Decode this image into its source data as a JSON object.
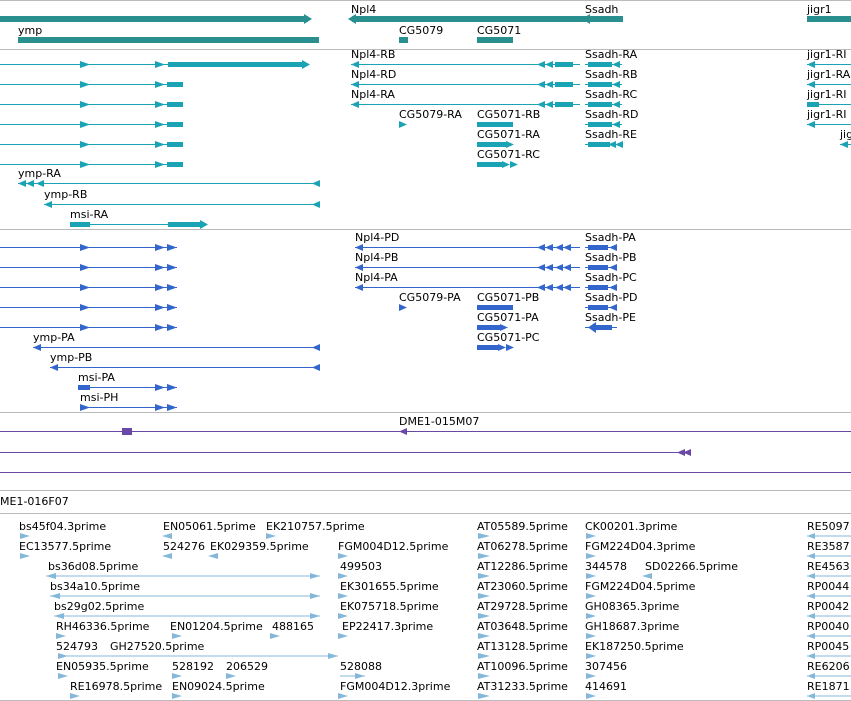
{
  "colors": {
    "gene": "#2a8f8f",
    "transcript_flybase": "#1aa3b5",
    "transcript_refseq": "#3366cc",
    "clone": "#6a48a8",
    "est": "#85b8d8",
    "separator": "#bbbbbb"
  },
  "tracks": {
    "genes": {
      "labels": [
        "ymp",
        "Npl4",
        "Ssadh",
        "jigr1",
        "CG5079",
        "CG5071"
      ]
    },
    "flybase_transcripts": {
      "labels": [
        "Npl4-RB",
        "Ssadh-RA",
        "jigr1-RI",
        "Npl4-RD",
        "Ssadh-RB",
        "jigr1-RA",
        "Npl4-RA",
        "Ssadh-RC",
        "jigr1-RI",
        "CG5079-RA",
        "CG5071-RB",
        "Ssadh-RD",
        "jigr1-RI",
        "CG5071-RA",
        "Ssadh-RE",
        "jig",
        "CG5071-RC",
        "ymp-RA",
        "ymp-RB",
        "msi-RA"
      ]
    },
    "refseq_transcripts": {
      "labels": [
        "Npl4-PD",
        "Ssadh-PA",
        "Npl4-PB",
        "Ssadh-PB",
        "Npl4-PA",
        "Ssadh-PC",
        "CG5079-PA",
        "CG5071-PB",
        "Ssadh-PD",
        "CG5071-PA",
        "Ssadh-PE",
        "ymp-PA",
        "CG5071-PC",
        "ymp-PB",
        "msi-PA",
        "msi-PH"
      ]
    },
    "clones": {
      "labels": [
        "DME1-015M07",
        "ME1-016F07"
      ]
    },
    "ests": {
      "labels": [
        "bs45f04.3prime",
        "EN05061.5prime",
        "EK210757.5prime",
        "AT05589.5prime",
        "CK00201.3prime",
        "RE5097",
        "EC13577.5prime",
        "524276",
        "EK029359.5prime",
        "FGM004D12.5prime",
        "AT06278.5prime",
        "FGM224D04.3prime",
        "RE3587",
        "bs36d08.5prime",
        "499503",
        "AT12286.5prime",
        "344578",
        "SD02266.5prime",
        "RE4563",
        "bs34a10.5prime",
        "EK301655.5prime",
        "AT23060.5prime",
        "FGM224D04.5prime",
        "RP0044",
        "bs29g02.5prime",
        "EK075718.5prime",
        "AT29728.5prime",
        "GH08365.3prime",
        "RP0042",
        "RH46336.5prime",
        "EN01204.5prime",
        "488165",
        "EP22417.3prime",
        "AT03648.5prime",
        "GH18687.3prime",
        "RP0040",
        "524793",
        "GH27520.5prime",
        "AT13128.5prime",
        "EK187250.5prime",
        "RP0045",
        "EN05935.5prime",
        "528192",
        "206529",
        "528088",
        "AT10096.5prime",
        "307456",
        "RE6206",
        "RE16978.5prime",
        "EN09024.5prime",
        "FGM004D12.3prime",
        "AT31233.5prime",
        "414691",
        "RE1871"
      ]
    }
  }
}
